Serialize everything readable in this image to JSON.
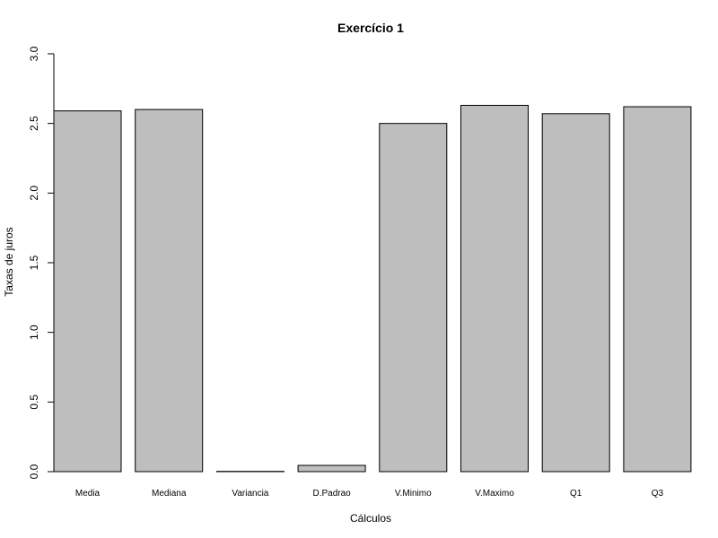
{
  "chart_data": {
    "type": "bar",
    "title": "Exercício 1",
    "xlabel": "Cálculos",
    "ylabel": "Taxas de juros",
    "categories": [
      "Media",
      "Mediana",
      "Variancia",
      "D.Padrao",
      "V.Minimo",
      "V.Maximo",
      "Q1",
      "Q3"
    ],
    "values": [
      2.59,
      2.6,
      0.002,
      0.045,
      2.5,
      2.63,
      2.57,
      2.62
    ],
    "ylim": [
      0,
      3.0
    ],
    "yticks": [
      "0.0",
      "0.5",
      "1.0",
      "1.5",
      "2.0",
      "2.5",
      "3.0"
    ],
    "bar_color": "#bebebe",
    "grid": false,
    "legend": "none"
  }
}
